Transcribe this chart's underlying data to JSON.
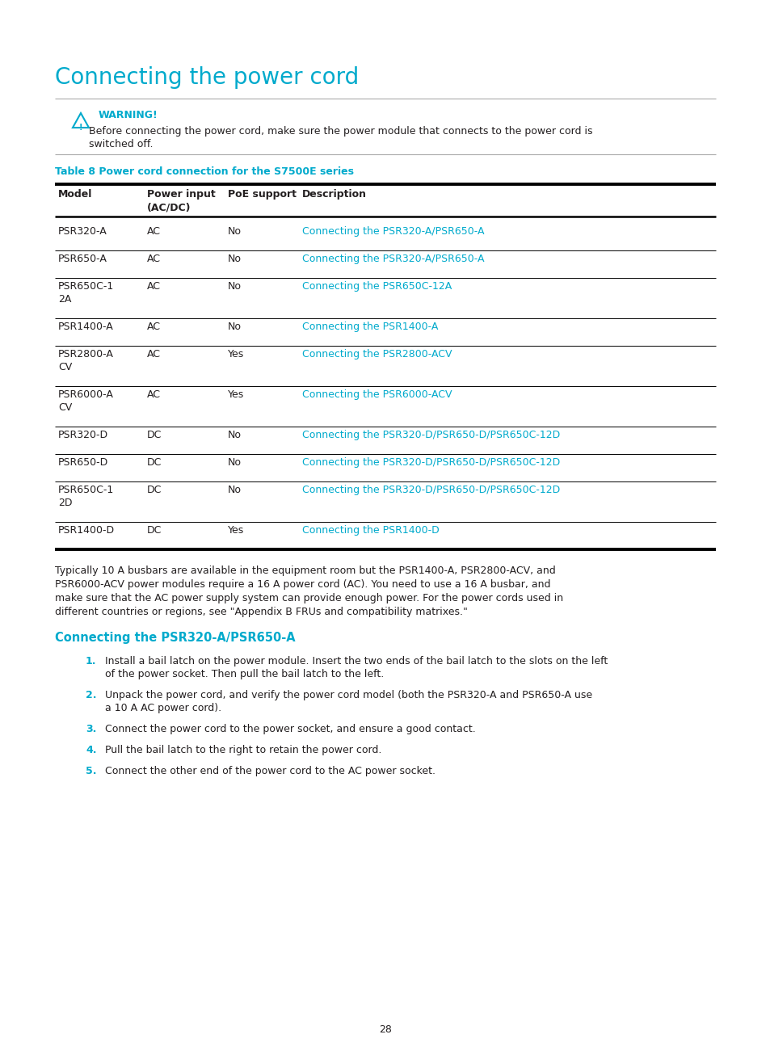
{
  "title": "Connecting the power cord",
  "title_color": "#00AACC",
  "title_fontsize": 20,
  "bg_color": "#FFFFFF",
  "text_color": "#231F20",
  "cyan_color": "#00AACC",
  "warning_label": "WARNING!",
  "warning_text_line1": "Before connecting the power cord, make sure the power module that connects to the power cord is",
  "warning_text_line2": "switched off.",
  "table_caption": "Table 8 Power cord connection for the S7500E series",
  "table_headers": [
    "Model",
    "Power input\n(AC/DC)",
    "PoE support",
    "Description"
  ],
  "table_rows": [
    [
      "PSR320-A",
      "AC",
      "No",
      "Connecting the PSR320-A/PSR650-A"
    ],
    [
      "PSR650-A",
      "AC",
      "No",
      "Connecting the PSR320-A/PSR650-A"
    ],
    [
      "PSR650C-1\n2A",
      "AC",
      "No",
      "Connecting the PSR650C-12A"
    ],
    [
      "PSR1400-A",
      "AC",
      "No",
      "Connecting the PSR1400-A"
    ],
    [
      "PSR2800-A\nCV",
      "AC",
      "Yes",
      "Connecting the PSR2800-ACV"
    ],
    [
      "PSR6000-A\nCV",
      "AC",
      "Yes",
      "Connecting the PSR6000-ACV"
    ],
    [
      "PSR320-D",
      "DC",
      "No",
      "Connecting the PSR320-D/PSR650-D/PSR650C-12D"
    ],
    [
      "PSR650-D",
      "DC",
      "No",
      "Connecting the PSR320-D/PSR650-D/PSR650C-12D"
    ],
    [
      "PSR650C-1\n2D",
      "DC",
      "No",
      "Connecting the PSR320-D/PSR650-D/PSR650C-12D"
    ],
    [
      "PSR1400-D",
      "DC",
      "Yes",
      "Connecting the PSR1400-D"
    ]
  ],
  "row_two_line": [
    false,
    false,
    true,
    false,
    true,
    true,
    false,
    false,
    true,
    false
  ],
  "paragraph_lines": [
    "Typically 10 A busbars are available in the equipment room but the PSR1400-A, PSR2800-ACV, and",
    "PSR6000-ACV power modules require a 16 A power cord (AC). You need to use a 16 A busbar, and",
    "make sure that the AC power supply system can provide enough power. For the power cords used in",
    "different countries or regions, see \"Appendix B FRUs and compatibility matrixes.\""
  ],
  "section_title": "Connecting the PSR320-A/PSR650-A",
  "steps": [
    [
      "Install a bail latch on the power module. Insert the two ends of the bail latch to the slots on the left",
      "of the power socket. Then pull the bail latch to the left."
    ],
    [
      "Unpack the power cord, and verify the power cord model (both the PSR320-A and PSR650-A use",
      "a 10 A AC power cord)."
    ],
    [
      "Connect the power cord to the power socket, and ensure a good contact."
    ],
    [
      "Pull the bail latch to the right to retain the power cord."
    ],
    [
      "Connect the other end of the power cord to the AC power socket."
    ]
  ],
  "page_number": "28"
}
